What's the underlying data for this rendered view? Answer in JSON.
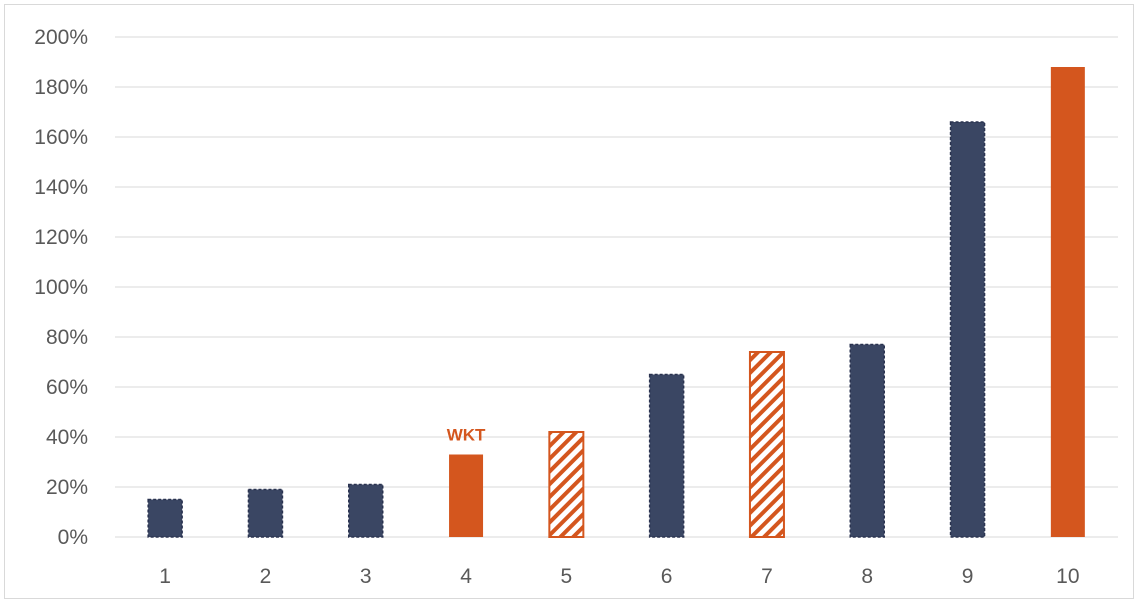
{
  "chart_data": {
    "type": "bar",
    "title": "",
    "xlabel": "",
    "ylabel": "",
    "categories": [
      "1",
      "2",
      "3",
      "4",
      "5",
      "6",
      "7",
      "8",
      "9",
      "10"
    ],
    "values": [
      0.15,
      0.19,
      0.21,
      0.33,
      0.42,
      0.65,
      0.74,
      0.77,
      1.66,
      1.88
    ],
    "bar_styles": [
      "navy",
      "navy",
      "navy",
      "orange",
      "orange-hatched",
      "navy",
      "orange-hatched",
      "navy",
      "navy",
      "orange"
    ],
    "ylim": [
      0,
      2.0
    ],
    "yticks": [
      "0%",
      "20%",
      "40%",
      "60%",
      "80%",
      "100%",
      "120%",
      "140%",
      "160%",
      "180%",
      "200%"
    ],
    "grid": true,
    "legend": "none",
    "annotations": [
      {
        "category": "4",
        "text": "WKT"
      }
    ],
    "colors": {
      "navy": "#3a4663",
      "orange": "#d4561e",
      "grid": "#d9d9d9",
      "axis_text": "#595959"
    }
  }
}
